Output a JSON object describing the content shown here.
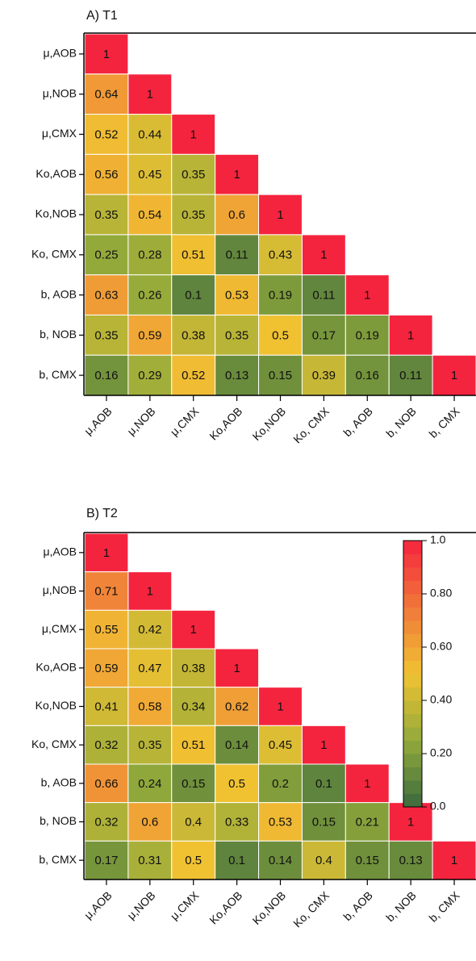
{
  "chart_data": [
    {
      "type": "heatmap",
      "title": "A) T1",
      "categories": [
        "μ,AOB",
        "μ,NOB",
        "μ,CMX",
        "Ko,AOB",
        "Ko,NOB",
        "Ko, CMX",
        "b, AOB",
        "b, NOB",
        "b, CMX"
      ],
      "values": [
        [
          1
        ],
        [
          0.64,
          1
        ],
        [
          0.52,
          0.44,
          1
        ],
        [
          0.56,
          0.45,
          0.35,
          1
        ],
        [
          0.35,
          0.54,
          0.35,
          0.6,
          1
        ],
        [
          0.25,
          0.28,
          0.51,
          0.11,
          0.43,
          1
        ],
        [
          0.63,
          0.26,
          0.1,
          0.53,
          0.19,
          0.11,
          1
        ],
        [
          0.35,
          0.59,
          0.38,
          0.35,
          0.5,
          0.17,
          0.19,
          1
        ],
        [
          0.16,
          0.29,
          0.52,
          0.13,
          0.15,
          0.39,
          0.16,
          0.11,
          1
        ]
      ],
      "clim": [
        0,
        1
      ],
      "colors": [
        "#3b6a3e",
        "#93aa3b",
        "#f0c232",
        "#f0783a",
        "#f5243e"
      ]
    },
    {
      "type": "heatmap",
      "title": "B) T2",
      "categories": [
        "μ,AOB",
        "μ,NOB",
        "μ,CMX",
        "Ko,AOB",
        "Ko,NOB",
        "Ko, CMX",
        "b, AOB",
        "b, NOB",
        "b, CMX"
      ],
      "values": [
        [
          1
        ],
        [
          0.71,
          1
        ],
        [
          0.55,
          0.42,
          1
        ],
        [
          0.59,
          0.47,
          0.38,
          1
        ],
        [
          0.41,
          0.58,
          0.34,
          0.62,
          1
        ],
        [
          0.32,
          0.35,
          0.51,
          0.14,
          0.45,
          1
        ],
        [
          0.66,
          0.24,
          0.15,
          0.5,
          0.2,
          0.1,
          1
        ],
        [
          0.32,
          0.6,
          0.4,
          0.33,
          0.53,
          0.15,
          0.21,
          1
        ],
        [
          0.17,
          0.31,
          0.5,
          0.1,
          0.14,
          0.4,
          0.15,
          0.13,
          1
        ]
      ],
      "clim": [
        0,
        1
      ],
      "colors": [
        "#3b6a3e",
        "#93aa3b",
        "#f0c232",
        "#f0783a",
        "#f5243e"
      ],
      "colorbar": {
        "ticks": [
          {
            "value": 0,
            "label": "0.0"
          },
          {
            "value": 0.2,
            "label": "0.20"
          },
          {
            "value": 0.4,
            "label": "0.40"
          },
          {
            "value": 0.6,
            "label": "0.60"
          },
          {
            "value": 0.8,
            "label": "0.80"
          },
          {
            "value": 1,
            "label": "1.0"
          }
        ]
      }
    }
  ]
}
